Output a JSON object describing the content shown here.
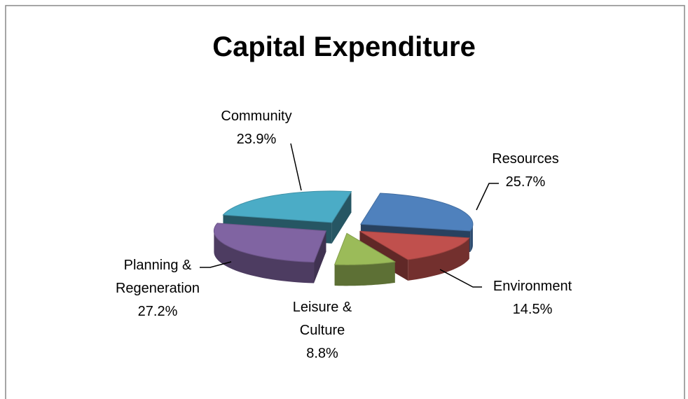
{
  "chart_data": {
    "type": "pie3d",
    "title": "Capital Expenditure",
    "categories": [
      "Resources",
      "Environment",
      "Leisure & Culture",
      "Planning & Regeneration",
      "Community"
    ],
    "values": [
      25.7,
      14.5,
      8.8,
      27.2,
      23.9
    ],
    "value_labels": [
      "25.7%",
      "14.5%",
      "8.8%",
      "27.2%",
      "23.9%"
    ],
    "colors": [
      "#4f81bd",
      "#c0504d",
      "#9bbb59",
      "#8064a2",
      "#4bacc6"
    ]
  }
}
